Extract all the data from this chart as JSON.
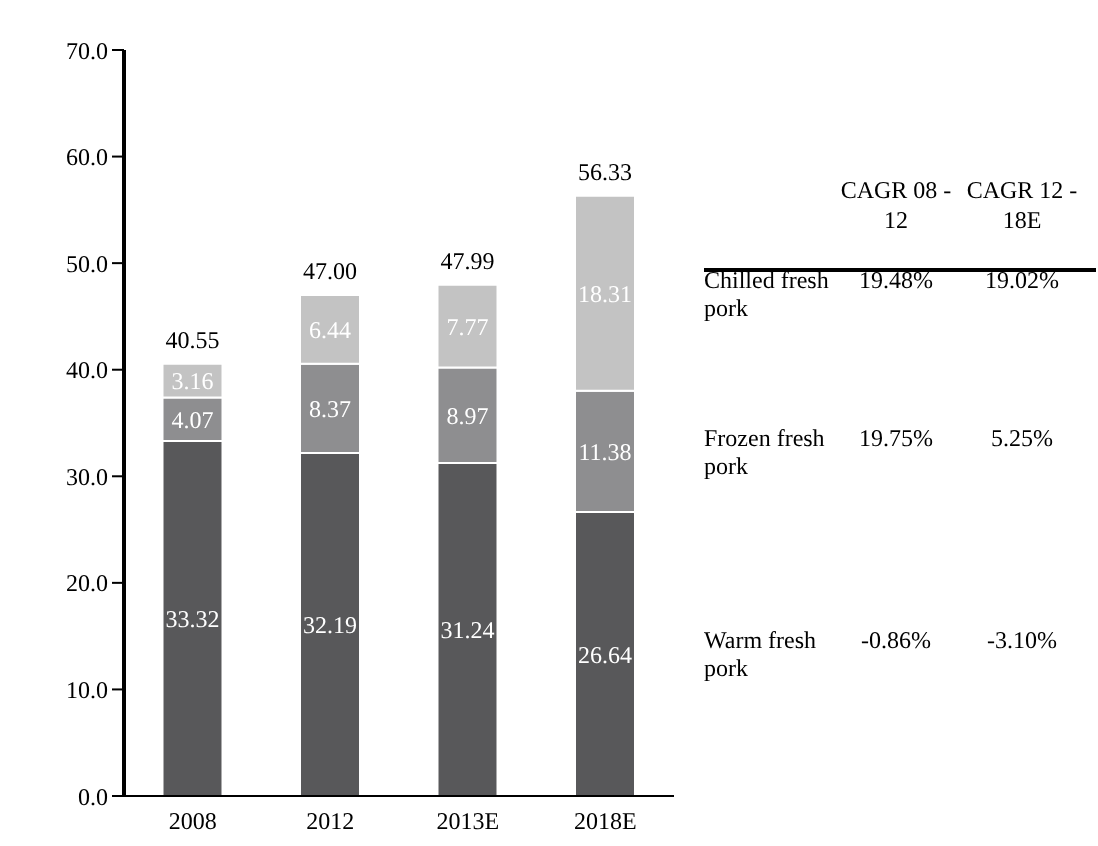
{
  "chart_data": {
    "type": "bar",
    "stacked": true,
    "categories": [
      "2008",
      "2012",
      "2013E",
      "2018E"
    ],
    "series": [
      {
        "name": "Warm fresh pork",
        "color": "#58585a",
        "values": [
          33.32,
          32.19,
          31.24,
          26.64
        ]
      },
      {
        "name": "Frozen fresh pork",
        "color": "#8e8e90",
        "values": [
          4.07,
          8.37,
          8.97,
          11.38
        ]
      },
      {
        "name": "Chilled fresh pork",
        "color": "#c3c3c3",
        "values": [
          3.16,
          6.44,
          7.77,
          18.31
        ]
      }
    ],
    "totals": [
      "40.55",
      "47.00",
      "47.99",
      "56.33"
    ],
    "data_labels": true,
    "ylim": [
      0,
      70
    ],
    "yticks": [
      {
        "value": 0,
        "label": "0.0"
      },
      {
        "value": 10,
        "label": "10.0"
      },
      {
        "value": 20,
        "label": "20.0"
      },
      {
        "value": 30,
        "label": "30.0"
      },
      {
        "value": 40,
        "label": "40.0"
      },
      {
        "value": 50,
        "label": "50.0"
      },
      {
        "value": 60,
        "label": "60.0"
      },
      {
        "value": 70,
        "label": "70.0"
      }
    ],
    "grid": false,
    "legend": "right",
    "annotations": [
      "CAGR 08 - 12",
      "CAGR 12 - 18E",
      "19.48%",
      "19.02%",
      "19.75%",
      "5.25%",
      "-0.86%",
      "-3.10%"
    ]
  }
}
